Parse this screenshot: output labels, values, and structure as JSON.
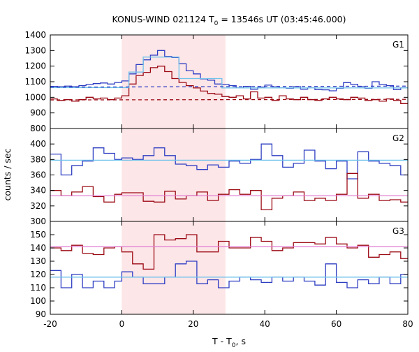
{
  "chart_data": {
    "type": "line",
    "title": {
      "prefix": "KONUS-WIND 021124 T",
      "sub": "0",
      "suffix": " = 13546s UT (03:45:46.000)"
    },
    "xlabel": {
      "prefix": "T - T",
      "sub": "0",
      "suffix": ", s"
    },
    "ylabel": "counts / sec",
    "xlim": [
      -20,
      80
    ],
    "xticks": [
      -20,
      0,
      20,
      40,
      60,
      80
    ],
    "highlight_interval": [
      0,
      29
    ],
    "colors": {
      "blue": "#2e3ec2",
      "darkred": "#9b0a14",
      "lightblue": "#6fc2ea",
      "pink": "#e07ad2",
      "shade": "#fde6e8"
    },
    "panels": [
      {
        "label": "G1",
        "ylim": [
          800,
          1400
        ],
        "yticks": [
          800,
          900,
          1000,
          1100,
          1200,
          1300,
          1400
        ],
        "series": [
          {
            "color": "blue",
            "style": "step",
            "x": [
              -20,
              -18,
              -16,
              -14,
              -12,
              -10,
              -8,
              -6,
              -4,
              -2,
              0,
              2,
              4,
              6,
              8,
              10,
              12,
              14,
              16,
              18,
              20,
              22,
              24,
              26,
              28,
              30,
              32,
              34,
              36,
              38,
              40,
              42,
              44,
              46,
              48,
              50,
              52,
              54,
              56,
              58,
              60,
              62,
              64,
              66,
              68,
              70,
              72,
              74,
              76,
              78,
              80
            ],
            "y": [
              1070,
              1068,
              1072,
              1068,
              1075,
              1082,
              1088,
              1092,
              1085,
              1095,
              1105,
              1150,
              1210,
              1240,
              1270,
              1300,
              1262,
              1255,
              1215,
              1170,
              1150,
              1118,
              1110,
              1085,
              1082,
              1075,
              1060,
              1070,
              1052,
              1066,
              1078,
              1067,
              1060,
              1058,
              1068,
              1052,
              1060,
              1050,
              1048,
              1042,
              1058,
              1094,
              1084,
              1068,
              1058,
              1100,
              1082,
              1075,
              1050,
              1060,
              1058
            ]
          },
          {
            "color": "darkred",
            "style": "step",
            "x": [
              -20,
              -18,
              -16,
              -14,
              -12,
              -10,
              -8,
              -6,
              -4,
              -2,
              0,
              2,
              4,
              6,
              8,
              10,
              12,
              14,
              16,
              18,
              20,
              22,
              24,
              26,
              28,
              30,
              32,
              34,
              36,
              38,
              40,
              42,
              44,
              46,
              48,
              50,
              52,
              54,
              56,
              58,
              60,
              62,
              64,
              66,
              68,
              70,
              72,
              74,
              76,
              78,
              80
            ],
            "y": [
              990,
              980,
              985,
              975,
              985,
              1000,
              990,
              995,
              985,
              995,
              1010,
              1085,
              1140,
              1160,
              1190,
              1200,
              1165,
              1120,
              1095,
              1075,
              1060,
              1040,
              1025,
              1020,
              1005,
              1000,
              1010,
              990,
              1035,
              995,
              1000,
              980,
              1010,
              990,
              985,
              1000,
              985,
              980,
              990,
              1000,
              990,
              985,
              1000,
              995,
              980,
              985,
              975,
              990,
              980,
              960,
              980
            ]
          },
          {
            "color": "lightblue",
            "style": "step",
            "x": [
              -20,
              0,
              2,
              6,
              12,
              16,
              28,
              80
            ],
            "y": [
              1062,
              1062,
              1162,
              1258,
              1258,
              1120,
              1060,
              1060
            ]
          },
          {
            "color": "blue",
            "style": "dashed",
            "x": [
              -20,
              80
            ],
            "y": [
              1065,
              1072
            ]
          },
          {
            "color": "darkred",
            "style": "dashed",
            "x": [
              -20,
              80
            ],
            "y": [
              983,
              987
            ]
          }
        ]
      },
      {
        "label": "G2",
        "ylim": [
          300,
          420
        ],
        "yticks": [
          300,
          320,
          340,
          360,
          380,
          400
        ],
        "series": [
          {
            "color": "blue",
            "style": "step",
            "x": [
              -20,
              -17,
              -14,
              -11,
              -8,
              -5,
              -2,
              0,
              3,
              6,
              9,
              12,
              15,
              18,
              21,
              24,
              27,
              30,
              33,
              36,
              39,
              42,
              45,
              48,
              51,
              54,
              57,
              60,
              63,
              66,
              69,
              72,
              75,
              78,
              80
            ],
            "y": [
              387,
              360,
              372,
              378,
              395,
              388,
              380,
              382,
              380,
              385,
              395,
              385,
              374,
              372,
              367,
              373,
              370,
              378,
              375,
              380,
              400,
              385,
              370,
              375,
              392,
              378,
              368,
              378,
              355,
              390,
              378,
              375,
              372,
              360,
              388
            ]
          },
          {
            "color": "darkred",
            "style": "step",
            "x": [
              -20,
              -17,
              -14,
              -11,
              -8,
              -5,
              -2,
              0,
              3,
              6,
              9,
              12,
              15,
              18,
              21,
              24,
              27,
              30,
              33,
              36,
              39,
              42,
              45,
              48,
              51,
              54,
              57,
              60,
              63,
              66,
              69,
              72,
              75,
              78,
              80
            ],
            "y": [
              340,
              333,
              338,
              345,
              332,
              325,
              335,
              337,
              337,
              326,
              325,
              339,
              329,
              333,
              338,
              327,
              335,
              341,
              335,
              340,
              315,
              330,
              333,
              338,
              327,
              330,
              327,
              335,
              362,
              330,
              335,
              327,
              328,
              325,
              330
            ]
          },
          {
            "color": "lightblue",
            "style": "flat",
            "x": [
              -20,
              80
            ],
            "y": [
              379,
              379
            ]
          },
          {
            "color": "pink",
            "style": "flat",
            "x": [
              -20,
              80
            ],
            "y": [
              333,
              333
            ]
          }
        ]
      },
      {
        "label": "G3",
        "ylim": [
          90,
          160
        ],
        "yticks": [
          90,
          100,
          110,
          120,
          130,
          140,
          150
        ],
        "series": [
          {
            "color": "blue",
            "style": "step",
            "x": [
              -20,
              -17,
              -14,
              -11,
              -8,
              -5,
              -2,
              0,
              3,
              6,
              9,
              12,
              15,
              18,
              21,
              24,
              27,
              30,
              33,
              36,
              39,
              42,
              45,
              48,
              51,
              54,
              57,
              60,
              63,
              66,
              69,
              72,
              75,
              78,
              80
            ],
            "y": [
              123,
              110,
              120,
              110,
              115,
              110,
              115,
              122,
              118,
              113,
              113,
              118,
              128,
              130,
              113,
              116,
              110,
              115,
              118,
              116,
              114,
              118,
              115,
              118,
              115,
              112,
              128,
              114,
              110,
              116,
              113,
              118,
              113,
              120,
              123
            ]
          },
          {
            "color": "darkred",
            "style": "step",
            "x": [
              -20,
              -17,
              -14,
              -11,
              -8,
              -5,
              -2,
              0,
              3,
              6,
              9,
              12,
              15,
              18,
              21,
              24,
              27,
              30,
              33,
              36,
              39,
              42,
              45,
              48,
              51,
              54,
              57,
              60,
              63,
              66,
              69,
              72,
              75,
              78,
              80
            ],
            "y": [
              140,
              138,
              142,
              136,
              135,
              140,
              141,
              137,
              128,
              124,
              150,
              146,
              147,
              150,
              137,
              137,
              145,
              140,
              140,
              148,
              145,
              138,
              140,
              144,
              144,
              143,
              148,
              143,
              140,
              142,
              133,
              135,
              137,
              132,
              130
            ]
          },
          {
            "color": "lightblue",
            "style": "flat",
            "x": [
              -20,
              80
            ],
            "y": [
              118,
              118
            ]
          },
          {
            "color": "pink",
            "style": "flat",
            "x": [
              -20,
              80
            ],
            "y": [
              141,
              141
            ]
          }
        ]
      }
    ]
  }
}
